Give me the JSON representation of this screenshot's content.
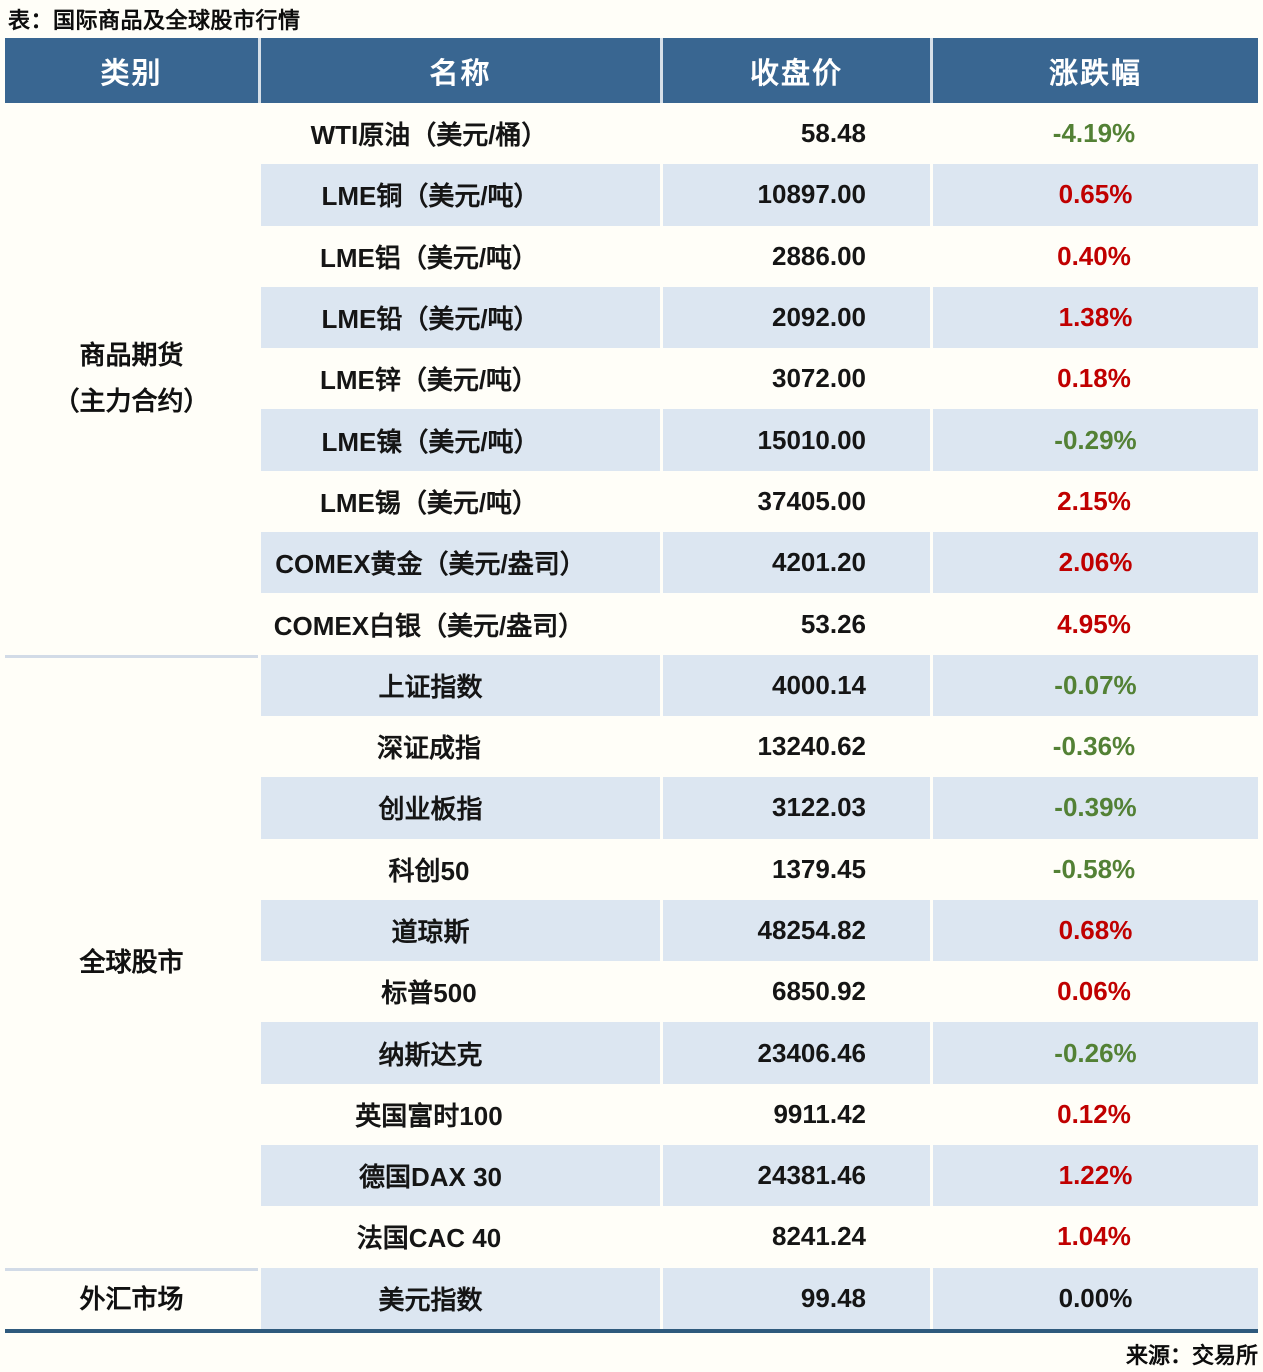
{
  "title": "表：国际商品及全球股市行情",
  "source": "来源：交易所",
  "colors": {
    "header_bg": "#396691",
    "stripe": "#DCE6F1",
    "up": "#C00000",
    "down": "#538135",
    "flat": "#141414",
    "bottom_rule": "#2F5A7D",
    "section_separator": "#D2DBE7"
  },
  "chart_data": {
    "type": "table",
    "title": "表：国际商品及全球股市行情",
    "columns": [
      "类别",
      "名称",
      "收盘价",
      "涨跌幅"
    ],
    "sections": [
      {
        "category": "商品期货\n（主力合约）",
        "rows": [
          {
            "name": "WTI原油（美元/桶）",
            "close": "58.48",
            "change": "-4.19%",
            "trend": "down"
          },
          {
            "name": "LME铜（美元/吨）",
            "close": "10897.00",
            "change": "0.65%",
            "trend": "up"
          },
          {
            "name": "LME铝（美元/吨）",
            "close": "2886.00",
            "change": "0.40%",
            "trend": "up"
          },
          {
            "name": "LME铅（美元/吨）",
            "close": "2092.00",
            "change": "1.38%",
            "trend": "up"
          },
          {
            "name": "LME锌（美元/吨）",
            "close": "3072.00",
            "change": "0.18%",
            "trend": "up"
          },
          {
            "name": "LME镍（美元/吨）",
            "close": "15010.00",
            "change": "-0.29%",
            "trend": "down"
          },
          {
            "name": "LME锡（美元/吨）",
            "close": "37405.00",
            "change": "2.15%",
            "trend": "up"
          },
          {
            "name": "COMEX黄金（美元/盎司）",
            "close": "4201.20",
            "change": "2.06%",
            "trend": "up"
          },
          {
            "name": "COMEX白银（美元/盎司）",
            "close": "53.26",
            "change": "4.95%",
            "trend": "up"
          }
        ]
      },
      {
        "category": "全球股市",
        "rows": [
          {
            "name": "上证指数",
            "close": "4000.14",
            "change": "-0.07%",
            "trend": "down"
          },
          {
            "name": "深证成指",
            "close": "13240.62",
            "change": "-0.36%",
            "trend": "down"
          },
          {
            "name": "创业板指",
            "close": "3122.03",
            "change": "-0.39%",
            "trend": "down"
          },
          {
            "name": "科创50",
            "close": "1379.45",
            "change": "-0.58%",
            "trend": "down"
          },
          {
            "name": "道琼斯",
            "close": "48254.82",
            "change": "0.68%",
            "trend": "up"
          },
          {
            "name": "标普500",
            "close": "6850.92",
            "change": "0.06%",
            "trend": "up"
          },
          {
            "name": "纳斯达克",
            "close": "23406.46",
            "change": "-0.26%",
            "trend": "down"
          },
          {
            "name": "英国富时100",
            "close": "9911.42",
            "change": "0.12%",
            "trend": "up"
          },
          {
            "name": "德国DAX 30",
            "close": "24381.46",
            "change": "1.22%",
            "trend": "up"
          },
          {
            "name": "法国CAC 40",
            "close": "8241.24",
            "change": "1.04%",
            "trend": "up"
          }
        ]
      },
      {
        "category": "外汇市场",
        "rows": [
          {
            "name": "美元指数",
            "close": "99.48",
            "change": "0.00%",
            "trend": "flat"
          }
        ]
      }
    ]
  }
}
